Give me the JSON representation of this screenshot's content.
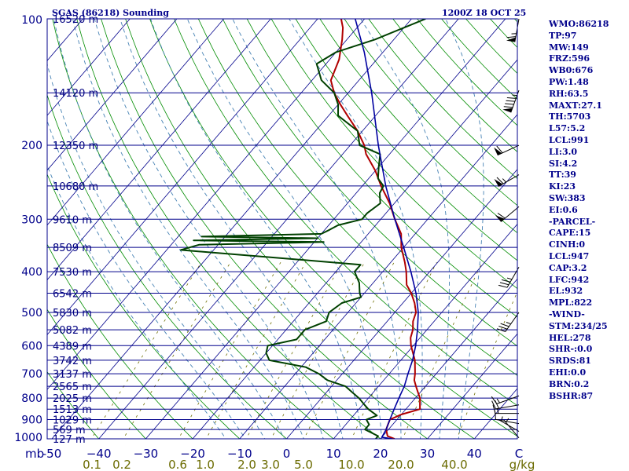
{
  "title_left": "SGAS (86218) Sounding",
  "title_right": "1200Z 18 OCT 25",
  "indices": [
    "WMO:86218",
    "TP:97",
    "MW:149",
    "FRZ:596",
    "WB0:676",
    "PW:1.48",
    "RH:63.5",
    "MAXT:27.1",
    "TH:5703",
    "L57:5.2",
    "LCL:991",
    "LI:3.0",
    "SI:4.2",
    "TT:39",
    "KI:23",
    "SW:383",
    "EI:0.6",
    "-PARCEL-",
    "CAPE:15",
    "CINH:0",
    "LCL:947",
    "CAP:3.2",
    "LFC:942",
    "EL:932",
    "MPL:822",
    "-WIND-",
    "STM:234/25",
    "HEL:278",
    "SHR-:0.0",
    "SRDS:81",
    "EHI:0.0",
    "BRN:0.2",
    "BSHR:87"
  ],
  "colors": {
    "isobar": "#00008b",
    "isotherm": "#00008b",
    "dry_adiabat": "#008c00",
    "moist_adiabat": "#4682b4",
    "mixing_ratio": "#6e6e00",
    "temperature": "#b00000",
    "dewpoint": "#004000",
    "parcel": "#0000a0",
    "wind": "#000000"
  },
  "chart_data": {
    "type": "line",
    "title": "SGAS (86218) Sounding",
    "subtitle": "1200Z 18 OCT 25",
    "ylabel": "mb",
    "xlabel": "",
    "ylim": [
      1000,
      100
    ],
    "xlim": [
      -50,
      50
    ],
    "y_scale": "log (pressure)",
    "grid": true,
    "pressure_ticks": [
      100,
      200,
      300,
      400,
      500,
      600,
      700,
      800,
      900,
      1000
    ],
    "pressure_tick_labels": [
      "100",
      "200",
      "300",
      "400",
      "500",
      "600",
      "700",
      "800",
      "900",
      "1000"
    ],
    "temperature_ticks": [
      -50,
      -40,
      -30,
      -20,
      -10,
      0,
      10,
      20,
      30,
      40
    ],
    "temperature_tick_labels": [
      "-50",
      "−40",
      "−30",
      "−20",
      "−10",
      "0",
      "10",
      "20",
      "30",
      "40"
    ],
    "corner_label": "mb",
    "corner_label_right": "C",
    "mixing_ratio_labels": [
      "0.1",
      "0.2",
      "0.6",
      "1.0",
      "2.0",
      "3.0",
      "5.0",
      "10.0",
      "20.0",
      "40.0",
      "g/kg"
    ],
    "height_levels": [
      {
        "p": 100,
        "label": "16520 m"
      },
      {
        "p": 150,
        "label": "14120 m"
      },
      {
        "p": 200,
        "label": "12350 m"
      },
      {
        "p": 250,
        "label": "10680 m"
      },
      {
        "p": 300,
        "label": "9610 m"
      },
      {
        "p": 350,
        "label": "8509 m"
      },
      {
        "p": 400,
        "label": "7530 m"
      },
      {
        "p": 450,
        "label": "6542 m"
      },
      {
        "p": 500,
        "label": "5830 m"
      },
      {
        "p": 550,
        "label": "5082 m"
      },
      {
        "p": 600,
        "label": "4389 m"
      },
      {
        "p": 650,
        "label": "3742 m"
      },
      {
        "p": 700,
        "label": "3137 m"
      },
      {
        "p": 750,
        "label": "2565 m"
      },
      {
        "p": 800,
        "label": "2025 m"
      },
      {
        "p": 850,
        "label": "1513 m"
      },
      {
        "p": 900,
        "label": "1029 m"
      },
      {
        "p": 950,
        "label": "569 m"
      },
      {
        "p": 1000,
        "label": "127 m"
      }
    ],
    "series": [
      {
        "key": "temperature",
        "x_units": "°C",
        "points": [
          [
            1000,
            23
          ],
          [
            985,
            21
          ],
          [
            950,
            19.5
          ],
          [
            925,
            19
          ],
          [
            900,
            18.5
          ],
          [
            875,
            20
          ],
          [
            850,
            23
          ],
          [
            825,
            22
          ],
          [
            800,
            21
          ],
          [
            775,
            19.5
          ],
          [
            750,
            18
          ],
          [
            725,
            16.5
          ],
          [
            700,
            15.5
          ],
          [
            650,
            13
          ],
          [
            600,
            9.5
          ],
          [
            575,
            8
          ],
          [
            550,
            7
          ],
          [
            525,
            5.5
          ],
          [
            500,
            4.5
          ],
          [
            475,
            2.5
          ],
          [
            450,
            0
          ],
          [
            430,
            -2.5
          ],
          [
            400,
            -5
          ],
          [
            380,
            -7
          ],
          [
            350,
            -10.5
          ],
          [
            325,
            -13
          ],
          [
            300,
            -17
          ],
          [
            275,
            -21
          ],
          [
            250,
            -26
          ],
          [
            230,
            -30
          ],
          [
            210,
            -35
          ],
          [
            200,
            -37
          ],
          [
            185,
            -41
          ],
          [
            170,
            -46
          ],
          [
            160,
            -49.5
          ],
          [
            150,
            -53
          ],
          [
            140,
            -56
          ],
          [
            125,
            -58
          ],
          [
            112,
            -61
          ],
          [
            105,
            -63
          ],
          [
            100,
            -65
          ]
        ]
      },
      {
        "key": "dewpoint",
        "x_units": "°C",
        "points": [
          [
            1000,
            19
          ],
          [
            985,
            19
          ],
          [
            950,
            15
          ],
          [
            925,
            15
          ],
          [
            900,
            13.5
          ],
          [
            880,
            15
          ],
          [
            850,
            12
          ],
          [
            825,
            10
          ],
          [
            800,
            8
          ],
          [
            775,
            5.5
          ],
          [
            750,
            3
          ],
          [
            725,
            -2
          ],
          [
            700,
            -5
          ],
          [
            675,
            -9
          ],
          [
            650,
            -18
          ],
          [
            625,
            -20
          ],
          [
            600,
            -21
          ],
          [
            580,
            -16
          ],
          [
            550,
            -16
          ],
          [
            525,
            -13
          ],
          [
            500,
            -14
          ],
          [
            475,
            -13
          ],
          [
            460,
            -10
          ],
          [
            450,
            -11
          ],
          [
            425,
            -13
          ],
          [
            400,
            -16
          ],
          [
            385,
            -16
          ],
          [
            370,
            -36
          ],
          [
            355,
            -57
          ],
          [
            345,
            -54
          ],
          [
            340,
            -28
          ],
          [
            337,
            -56
          ],
          [
            333,
            -30
          ],
          [
            330,
            -55
          ],
          [
            325,
            -30
          ],
          [
            318,
            -29
          ],
          [
            310,
            -28
          ],
          [
            300,
            -24
          ],
          [
            290,
            -24
          ],
          [
            275,
            -23
          ],
          [
            260,
            -25
          ],
          [
            250,
            -25.5
          ],
          [
            240,
            -28
          ],
          [
            225,
            -30
          ],
          [
            210,
            -32
          ],
          [
            200,
            -38
          ],
          [
            185,
            -41
          ],
          [
            170,
            -48
          ],
          [
            160,
            -50
          ],
          [
            150,
            -53
          ],
          [
            140,
            -58
          ],
          [
            128,
            -62
          ],
          [
            120,
            -60
          ],
          [
            112,
            -54
          ],
          [
            105,
            -50
          ],
          [
            100,
            -47
          ]
        ]
      },
      {
        "key": "parcel",
        "x_units": "°C",
        "points": [
          [
            1000,
            22.5
          ],
          [
            991,
            20
          ],
          [
            950,
            19.5
          ],
          [
            900,
            18.5
          ],
          [
            850,
            17.5
          ],
          [
            800,
            16.5
          ],
          [
            750,
            15.5
          ],
          [
            700,
            14
          ],
          [
            650,
            12.5
          ],
          [
            600,
            10.5
          ],
          [
            550,
            8
          ],
          [
            500,
            5
          ],
          [
            450,
            1
          ],
          [
            400,
            -4
          ],
          [
            350,
            -10
          ],
          [
            300,
            -17
          ],
          [
            250,
            -25
          ],
          [
            200,
            -34
          ],
          [
            150,
            -45
          ],
          [
            120,
            -54
          ],
          [
            100,
            -62
          ]
        ]
      }
    ],
    "wind_barbs": [
      {
        "p": 100,
        "dir": 190,
        "speed": 65
      },
      {
        "p": 148,
        "dir": 200,
        "speed": 95
      },
      {
        "p": 200,
        "dir": 245,
        "speed": 60
      },
      {
        "p": 235,
        "dir": 240,
        "speed": 65
      },
      {
        "p": 280,
        "dir": 230,
        "speed": 60
      },
      {
        "p": 390,
        "dir": 210,
        "speed": 35
      },
      {
        "p": 500,
        "dir": 215,
        "speed": 35
      },
      {
        "p": 790,
        "dir": 250,
        "speed": 15
      },
      {
        "p": 830,
        "dir": 260,
        "speed": 20
      },
      {
        "p": 870,
        "dir": 270,
        "speed": 15
      },
      {
        "p": 920,
        "dir": 280,
        "speed": 10
      },
      {
        "p": 960,
        "dir": 300,
        "speed": 5
      },
      {
        "p": 995,
        "dir": 320,
        "speed": 5
      }
    ]
  }
}
